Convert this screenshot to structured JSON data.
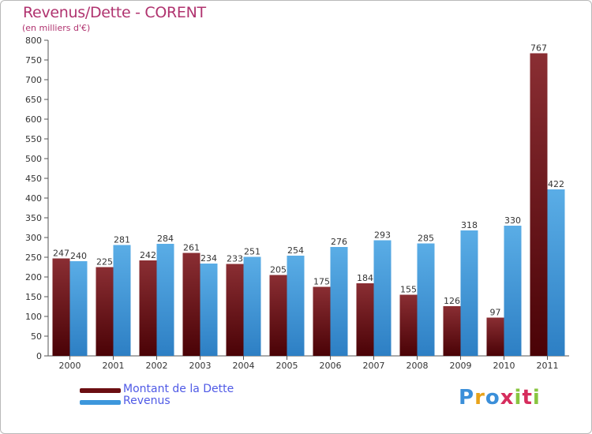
{
  "title": "Revenus/Dette - CORENT",
  "subtitle": "(en milliers d'€)",
  "chart_data": {
    "type": "bar",
    "categories": [
      "2000",
      "2001",
      "2002",
      "2003",
      "2004",
      "2005",
      "2006",
      "2007",
      "2008",
      "2009",
      "2010",
      "2011"
    ],
    "series": [
      {
        "name": "Montant de la Dette",
        "values": [
          247,
          225,
          242,
          261,
          233,
          205,
          175,
          184,
          155,
          126,
          97,
          767
        ],
        "color": "#6b0e12"
      },
      {
        "name": "Revenus",
        "values": [
          240,
          281,
          284,
          234,
          251,
          254,
          276,
          293,
          285,
          318,
          330,
          422
        ],
        "color": "#3d97dc"
      }
    ],
    "ylim": [
      0,
      800
    ],
    "yticks": [
      0,
      50,
      100,
      150,
      200,
      250,
      300,
      350,
      400,
      450,
      500,
      550,
      600,
      650,
      700,
      750,
      800
    ],
    "grid": false,
    "legend_position": "bottom-left"
  },
  "legend": {
    "items": [
      {
        "label": "Montant de la Dette",
        "color": "#6b0e12"
      },
      {
        "label": "Revenus",
        "color": "#3d97dc"
      }
    ]
  },
  "logo": {
    "letters": [
      "P",
      "r",
      "o",
      "x",
      "i",
      "t",
      "i"
    ],
    "colors": [
      "#3b8fd9",
      "#e8a21a",
      "#3b8fd9",
      "#d62d5d",
      "#88c540",
      "#d62d5d",
      "#88c540"
    ]
  }
}
